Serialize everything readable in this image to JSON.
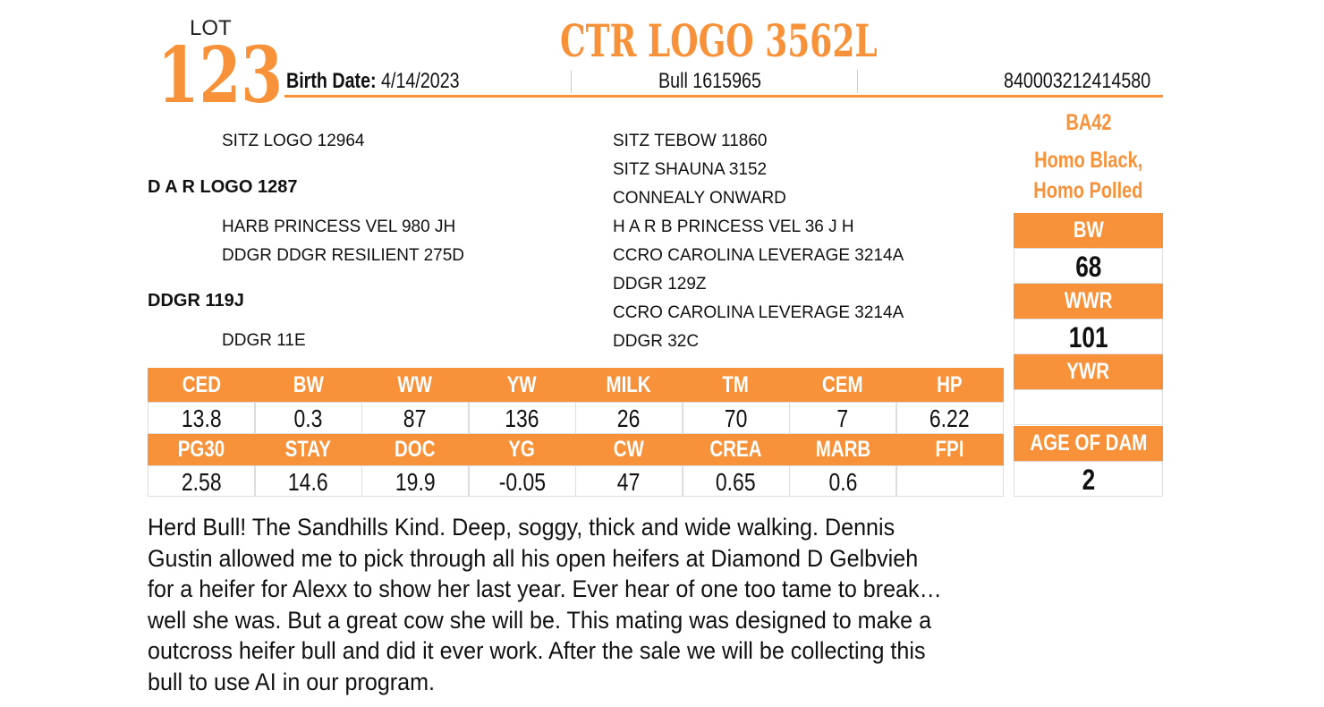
{
  "lot": {
    "label": "LOT",
    "number": "123"
  },
  "title": "CTR LOGO 3562L",
  "info": {
    "birth_date_label": "Birth Date:",
    "birth_date": "4/14/2023",
    "registration": "Bull 1615965",
    "id": "840003212414580"
  },
  "side": {
    "code": "BA42",
    "genetics": [
      "Homo Black,",
      "Homo Polled"
    ],
    "stats": [
      {
        "label": "BW",
        "value": "68"
      },
      {
        "label": "WWR",
        "value": "101"
      },
      {
        "label": "YWR"
      },
      {
        "label": "AGE OF DAM",
        "value": "2"
      }
    ]
  },
  "pedigree": {
    "left": [
      {
        "text": "SITZ LOGO 12964"
      },
      {
        "text": "D A R LOGO 1287",
        "bold": true
      },
      {
        "text": "HARB PRINCESS VEL 980 JH"
      },
      {
        "text": "DDGR DDGR RESILIENT 275D"
      },
      {
        "text": "DDGR 119J",
        "bold": true
      },
      {
        "text": "DDGR 11E"
      }
    ],
    "right": [
      "SITZ TEBOW 11860",
      "SITZ SHAUNA 3152",
      "CONNEALY ONWARD",
      "H A R B PRINCESS VEL 36 J H",
      "CCRO CAROLINA LEVERAGE 3214A",
      "DDGR 129Z",
      "CCRO CAROLINA LEVERAGE 3214A",
      "DDGR 32C"
    ]
  },
  "epd_table": {
    "rows": [
      {
        "headers": [
          "CED",
          "BW",
          "WW",
          "YW",
          "MILK",
          "TM",
          "CEM",
          "HP"
        ],
        "values": [
          "13.8",
          "0.3",
          "87",
          "136",
          "26",
          "70",
          "7",
          "6.22"
        ]
      },
      {
        "headers": [
          "PG30",
          "STAY",
          "DOC",
          "YG",
          "CW",
          "CREA",
          "MARB",
          "FPI"
        ],
        "values": [
          "2.58",
          "14.6",
          "19.9",
          "-0.05",
          "47",
          "0.65",
          "0.6",
          null
        ]
      }
    ]
  },
  "description": [
    "Herd Bull!  The Sandhills Kind.  Deep, soggy, thick and wide walking.  Dennis",
    "Gustin allowed me to pick through all his open heifers at Diamond D Gelbvieh",
    "for a heifer for Alexx to show her last year.  Ever hear of one too tame to break…",
    "well she was.  But a great cow she will be.  This mating was designed to make a",
    "outcross heifer bull and did it ever work.  After the sale we will be collecting this",
    "bull to use AI in our program."
  ]
}
